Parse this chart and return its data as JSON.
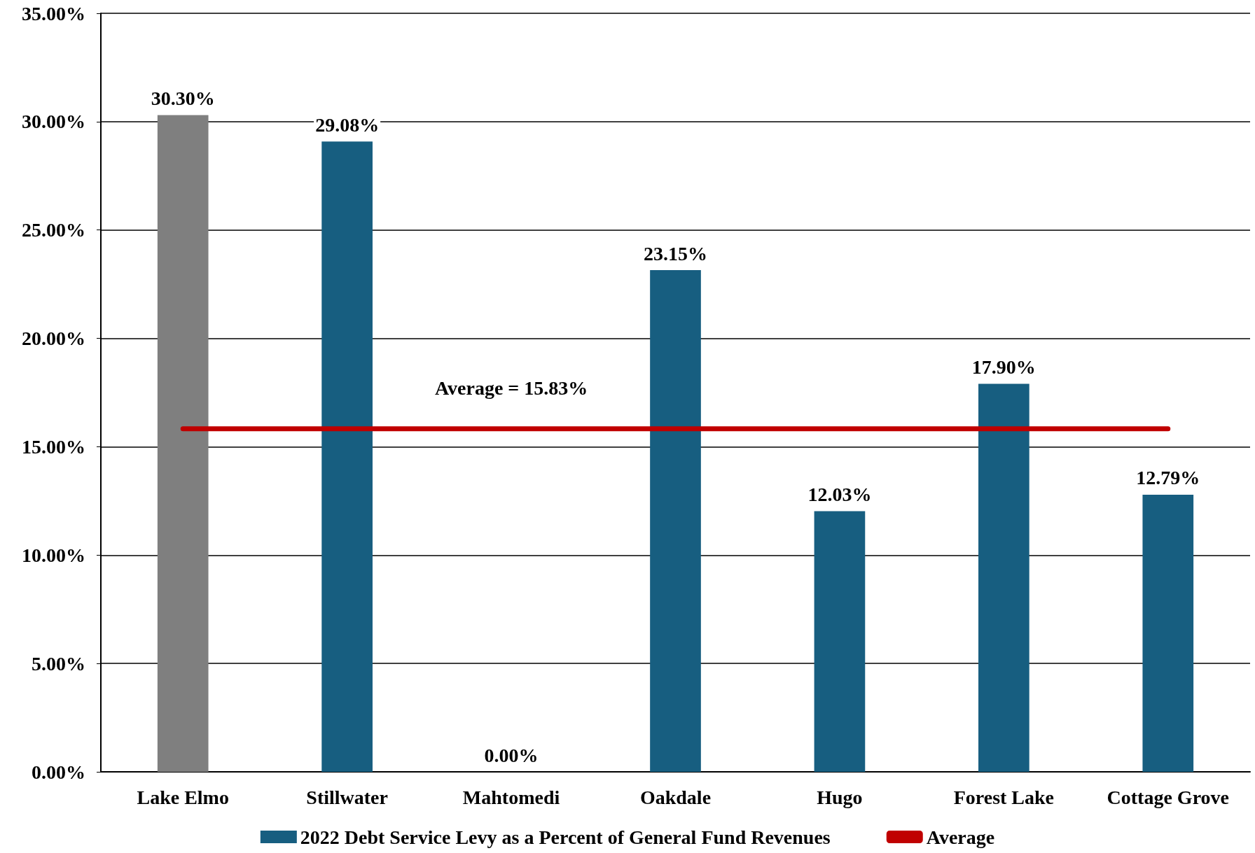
{
  "chart_data": {
    "type": "bar",
    "categories": [
      "Lake Elmo",
      "Stillwater",
      "Mahtomedi",
      "Oakdale",
      "Hugo",
      "Forest Lake",
      "Cottage Grove"
    ],
    "series": [
      {
        "name": "2022 Debt Service Levy as a Percent of General Fund Revenues",
        "color": "#175e80",
        "colors": [
          "#7f7f7f",
          "#175e80",
          "#175e80",
          "#175e80",
          "#175e80",
          "#175e80",
          "#175e80"
        ],
        "values": [
          30.3,
          29.08,
          0.0,
          23.15,
          12.03,
          17.9,
          12.79
        ],
        "value_labels": [
          "30.30%",
          "29.08%",
          "0.00%",
          "23.15%",
          "12.03%",
          "17.90%",
          "12.79%"
        ]
      },
      {
        "type": "line",
        "name": "Average",
        "color": "#c00000",
        "values": [
          15.83,
          15.83,
          15.83,
          15.83,
          15.83,
          15.83,
          15.83
        ],
        "marker": "none"
      }
    ],
    "ylim": [
      0,
      35
    ],
    "yticks": [
      {
        "value": 0,
        "label": "0.00%"
      },
      {
        "value": 5,
        "label": "5.00%"
      },
      {
        "value": 10,
        "label": "10.00%"
      },
      {
        "value": 15,
        "label": "15.00%"
      },
      {
        "value": 20,
        "label": "20.00%"
      },
      {
        "value": 25,
        "label": "25.00%"
      },
      {
        "value": 30,
        "label": "30.00%"
      },
      {
        "value": 35,
        "label": "35.00%"
      }
    ],
    "annotations": [
      {
        "text": "Average = 15.83%",
        "x": "Mahtomedi",
        "y": 15.83
      }
    ],
    "grid": "y",
    "legend": "bottom"
  }
}
